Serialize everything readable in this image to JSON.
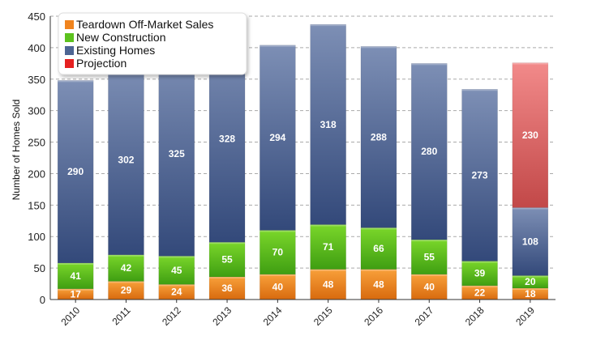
{
  "chart_data": {
    "type": "bar",
    "stacked": true,
    "categories": [
      "2010",
      "2011",
      "2012",
      "2013",
      "2014",
      "2015",
      "2016",
      "2017",
      "2018",
      "2019"
    ],
    "series": [
      {
        "name": "Teardown Off-Market Sales",
        "color": "#f0841e",
        "values": [
          17,
          29,
          24,
          36,
          40,
          48,
          48,
          40,
          22,
          18
        ]
      },
      {
        "name": "New Construction",
        "color": "#5cc21e",
        "values": [
          41,
          42,
          45,
          55,
          70,
          71,
          66,
          55,
          39,
          20
        ]
      },
      {
        "name": "Existing Homes",
        "color": "#4d6593",
        "values": [
          290,
          302,
          325,
          328,
          294,
          318,
          288,
          280,
          273,
          108
        ]
      },
      {
        "name": "Projection",
        "color": "#e05a5a",
        "values": [
          0,
          0,
          0,
          0,
          0,
          0,
          0,
          0,
          0,
          230
        ]
      }
    ],
    "title": "",
    "xlabel": "",
    "ylabel": "Number of Homes Sold",
    "ylim": [
      0,
      450
    ],
    "yticks": [
      0,
      50,
      100,
      150,
      200,
      250,
      300,
      350,
      400,
      450
    ],
    "grid": true,
    "legend": "top-left"
  }
}
